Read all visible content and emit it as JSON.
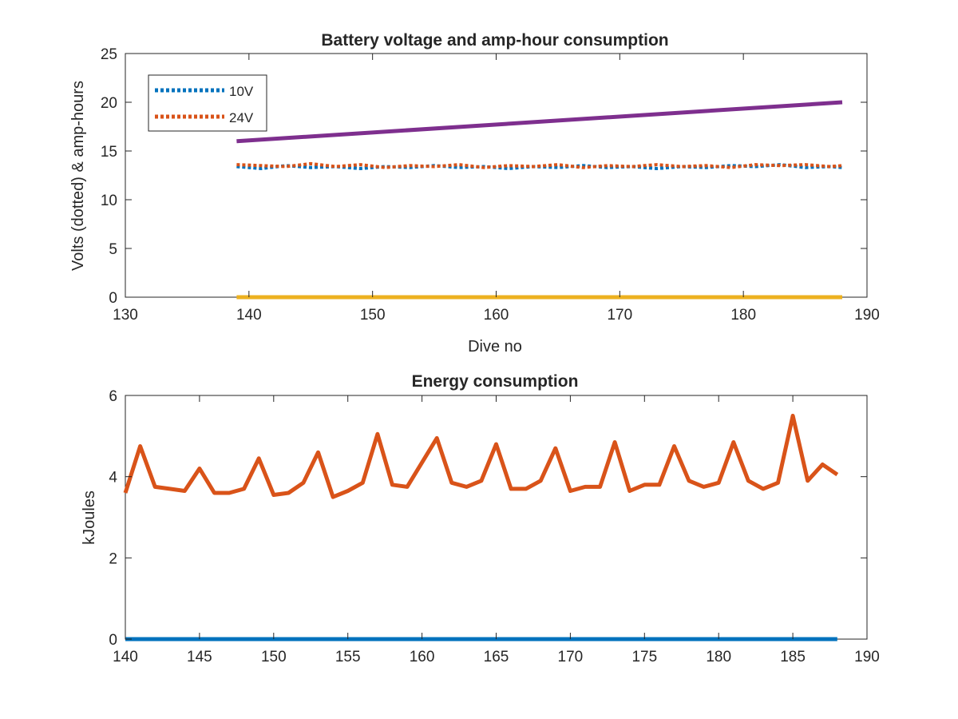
{
  "chart_data": [
    {
      "type": "line",
      "title": "Battery voltage and amp-hour consumption",
      "xlabel": "Dive no",
      "ylabel": "Volts (dotted) & amp-hours",
      "xlim": [
        130,
        190
      ],
      "ylim": [
        0,
        25
      ],
      "xticks": [
        130,
        140,
        150,
        160,
        170,
        180,
        190
      ],
      "yticks": [
        0,
        5,
        10,
        15,
        20,
        25
      ],
      "grid": false,
      "legend_position": "top-left",
      "series": [
        {
          "name": "10V",
          "style": "dotted",
          "color": "#0072BD",
          "x": [
            139,
            141,
            143,
            145,
            147,
            149,
            151,
            153,
            155,
            157,
            159,
            161,
            163,
            165,
            167,
            169,
            171,
            173,
            175,
            177,
            179,
            181,
            183,
            185,
            187,
            188
          ],
          "y": [
            13.4,
            13.2,
            13.5,
            13.3,
            13.4,
            13.2,
            13.4,
            13.3,
            13.5,
            13.3,
            13.4,
            13.2,
            13.4,
            13.3,
            13.5,
            13.3,
            13.4,
            13.2,
            13.4,
            13.3,
            13.5,
            13.4,
            13.6,
            13.3,
            13.4,
            13.3
          ]
        },
        {
          "name": "24V",
          "style": "dotted",
          "color": "#D95319",
          "x": [
            139,
            141,
            143,
            145,
            147,
            149,
            151,
            153,
            155,
            157,
            159,
            161,
            163,
            165,
            167,
            169,
            171,
            173,
            175,
            177,
            179,
            181,
            183,
            185,
            187,
            188
          ],
          "y": [
            13.6,
            13.5,
            13.4,
            13.7,
            13.4,
            13.6,
            13.3,
            13.5,
            13.4,
            13.6,
            13.3,
            13.5,
            13.4,
            13.6,
            13.3,
            13.5,
            13.4,
            13.6,
            13.4,
            13.5,
            13.3,
            13.6,
            13.5,
            13.6,
            13.4,
            13.5
          ]
        },
        {
          "style": "solid",
          "color": "#7E2F8E",
          "x": [
            139,
            188
          ],
          "y": [
            16.0,
            20.0
          ]
        },
        {
          "style": "solid",
          "color": "#EDB120",
          "x": [
            139,
            188
          ],
          "y": [
            0,
            0
          ]
        }
      ]
    },
    {
      "type": "line",
      "title": "Energy consumption",
      "xlabel": "",
      "ylabel": "kJoules",
      "xlim": [
        140,
        190
      ],
      "ylim": [
        0,
        6
      ],
      "xticks": [
        140,
        145,
        150,
        155,
        160,
        165,
        170,
        175,
        180,
        185,
        190
      ],
      "yticks": [
        0,
        2,
        4,
        6
      ],
      "grid": false,
      "series": [
        {
          "style": "solid",
          "color": "#D95319",
          "x": [
            140,
            141,
            142,
            143,
            144,
            145,
            146,
            147,
            148,
            149,
            150,
            151,
            152,
            153,
            154,
            155,
            156,
            157,
            158,
            159,
            160,
            161,
            162,
            163,
            164,
            165,
            166,
            167,
            168,
            169,
            170,
            171,
            172,
            173,
            174,
            175,
            176,
            177,
            178,
            179,
            180,
            181,
            182,
            183,
            184,
            185,
            186,
            187,
            188
          ],
          "y": [
            3.6,
            4.75,
            3.75,
            3.7,
            3.65,
            4.2,
            3.6,
            3.6,
            3.7,
            4.45,
            3.55,
            3.6,
            3.85,
            4.6,
            3.5,
            3.65,
            3.85,
            5.05,
            3.8,
            3.75,
            4.35,
            4.95,
            3.85,
            3.75,
            3.9,
            4.8,
            3.7,
            3.7,
            3.9,
            4.7,
            3.65,
            3.75,
            3.75,
            4.85,
            3.65,
            3.8,
            3.8,
            4.75,
            3.9,
            3.75,
            3.85,
            4.85,
            3.9,
            3.7,
            3.85,
            5.5,
            3.9,
            4.3,
            4.05
          ]
        },
        {
          "style": "solid",
          "color": "#0072BD",
          "x": [
            140,
            188
          ],
          "y": [
            0,
            0
          ]
        }
      ]
    }
  ]
}
